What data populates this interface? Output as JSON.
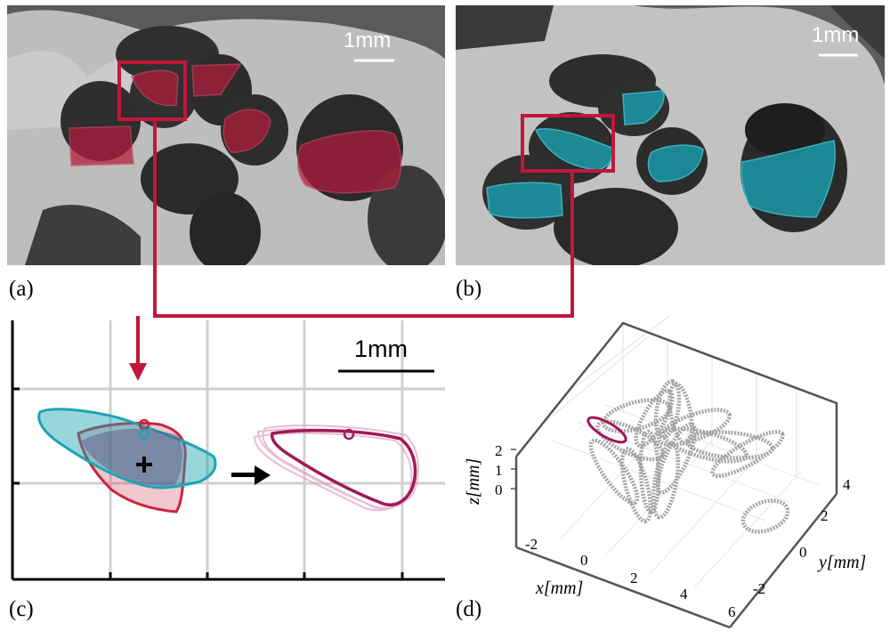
{
  "panels": {
    "a": {
      "label": "(a)",
      "scale": "1mm",
      "highlight_color": "#b01c3c"
    },
    "b": {
      "label": "(b)",
      "scale": "1mm",
      "highlight_color": "#1aa0b0"
    },
    "c": {
      "label": "(c)",
      "scale": "1mm"
    },
    "d": {
      "label": "(d)"
    }
  },
  "colors": {
    "connector": "#c0183a",
    "red_shape": "#c8233f",
    "cyan_shape": "#1ba5b5",
    "magenta_shape": "#a0185a",
    "trajectory_gray": "#999999"
  },
  "icons": [
    "plus-icon",
    "arrow-right-icon",
    "arrow-down-icon"
  ],
  "plot3d": {
    "xlabel": "x[mm]",
    "ylabel": "y[mm]",
    "zlabel": "z[mm]",
    "x_ticks": [
      "-2",
      "0",
      "2",
      "4",
      "6"
    ],
    "y_ticks": [
      "-2",
      "0",
      "2",
      "4"
    ],
    "z_ticks": [
      "0",
      "1",
      "2"
    ]
  }
}
